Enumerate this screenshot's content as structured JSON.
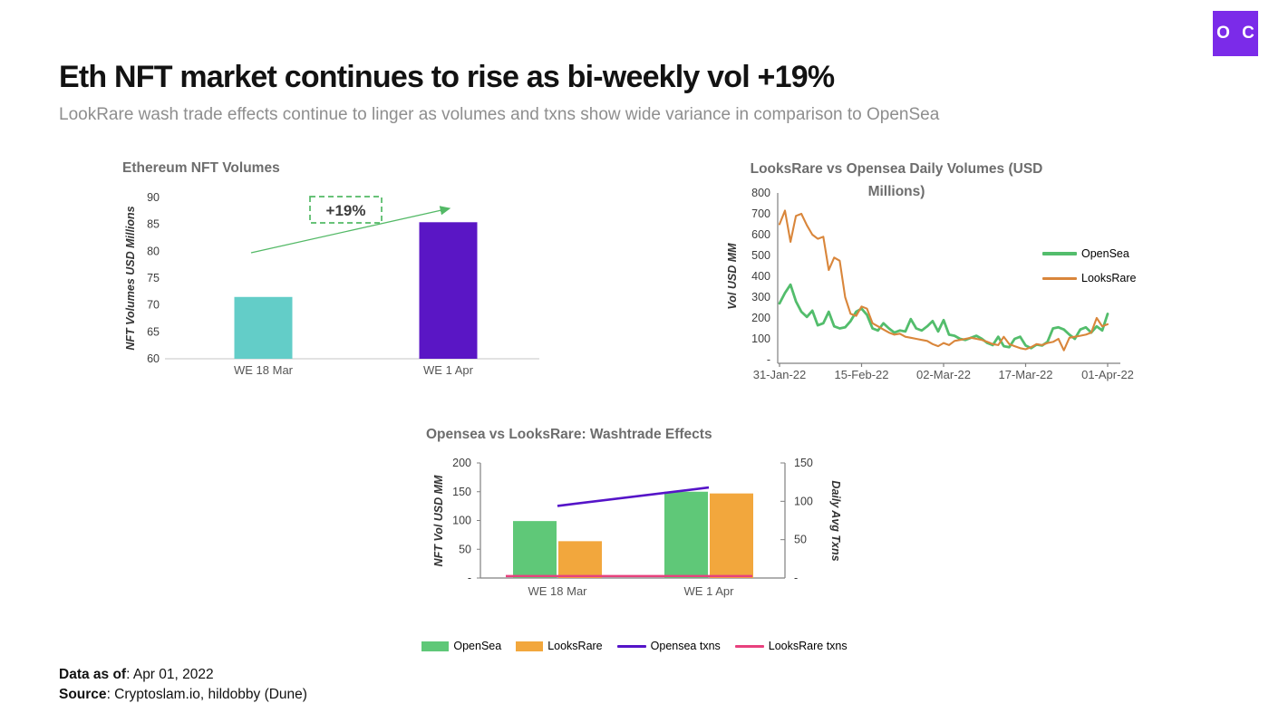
{
  "logo": {
    "text": "O C",
    "color": "#7B2BE9"
  },
  "header": {
    "title": "Eth NFT market continues to rise as bi-weekly vol +19%",
    "subtitle": "LookRare wash trade effects continue to linger as volumes and txns show wide variance in comparison to OpenSea"
  },
  "footer": {
    "line1_label": "Data as of",
    "line1_value": ": Apr 01, 2022",
    "line2_label": "Source",
    "line2_value": ": Cryptoslam.io, hildobby (Dune)"
  },
  "chart_data": [
    {
      "id": "eth-nft-volumes",
      "type": "bar",
      "title": "Ethereum NFT Volumes",
      "ylabel": "NFT Volumes USD Millions",
      "categories": [
        "WE 18 Mar",
        "WE 1 Apr"
      ],
      "values": [
        71.5,
        85.4
      ],
      "bar_colors": [
        "#63CDC8",
        "#5A16C5"
      ],
      "ylim": [
        60,
        90
      ],
      "yticks": [
        90,
        85,
        80,
        75,
        70,
        65,
        60
      ],
      "grid": "baseline-only",
      "annotation": {
        "label": "+19%",
        "color": "#53B966",
        "style": "dashed-box-with-arrow"
      }
    },
    {
      "id": "looksrare-vs-opensea-daily-volumes",
      "type": "line",
      "title": "LooksRare vs Opensea Daily Volumes (USD Millions)",
      "ylabel": "Vol USD MM",
      "ylim": [
        0,
        800
      ],
      "yticks": [
        800,
        700,
        600,
        500,
        400,
        300,
        200,
        100,
        0
      ],
      "zero_tick_label": "-",
      "xticks": [
        "31-Jan-22",
        "15-Feb-22",
        "02-Mar-22",
        "17-Mar-22",
        "01-Apr-22"
      ],
      "legend_position": "right",
      "series": [
        {
          "name": "OpenSea",
          "color": "#53BD6C",
          "values": [
            270,
            320,
            360,
            280,
            230,
            205,
            235,
            165,
            175,
            230,
            160,
            150,
            155,
            185,
            230,
            245,
            215,
            150,
            140,
            175,
            150,
            130,
            140,
            135,
            195,
            150,
            140,
            160,
            185,
            135,
            190,
            120,
            115,
            100,
            95,
            105,
            115,
            100,
            80,
            70,
            110,
            65,
            60,
            100,
            110,
            68,
            55,
            72,
            68,
            85,
            150,
            155,
            145,
            120,
            100,
            145,
            155,
            130,
            160,
            140,
            220
          ]
        },
        {
          "name": "LooksRare",
          "color": "#D9863B",
          "values": [
            650,
            715,
            565,
            690,
            700,
            645,
            600,
            580,
            590,
            430,
            490,
            475,
            300,
            220,
            210,
            255,
            245,
            175,
            160,
            145,
            130,
            120,
            125,
            110,
            105,
            100,
            95,
            90,
            75,
            65,
            80,
            70,
            90,
            95,
            100,
            105,
            100,
            95,
            85,
            75,
            70,
            110,
            75,
            65,
            55,
            50,
            60,
            75,
            70,
            80,
            85,
            100,
            45,
            105,
            110,
            115,
            120,
            130,
            200,
            160,
            170
          ]
        }
      ]
    },
    {
      "id": "washtrade-effects",
      "type": "combo",
      "title": "Opensea vs LooksRare: Washtrade Effects",
      "ylabel_left": "NFT Vol USD MM",
      "ylabel_right": "Daily Avg Txns",
      "ylim_left": [
        0,
        200
      ],
      "ylim_right": [
        0,
        150
      ],
      "yticks_left": [
        200,
        150,
        100,
        50,
        0
      ],
      "yticks_right": [
        150,
        100,
        50,
        0
      ],
      "zero_tick_label": "-",
      "categories": [
        "WE 18 Mar",
        "WE 1 Apr"
      ],
      "bar_series": [
        {
          "name": "OpenSea",
          "color": "#5FC878",
          "values": [
            99,
            150
          ]
        },
        {
          "name": "LooksRare",
          "color": "#F2A73D",
          "values": [
            64,
            147
          ]
        }
      ],
      "line_series": [
        {
          "name": "Opensea txns",
          "color": "#5514C8",
          "values": [
            94,
            118
          ],
          "axis": "right"
        },
        {
          "name": "LooksRare txns",
          "color": "#E8417E",
          "values": [
            2.5,
            2.5
          ],
          "axis": "right"
        }
      ],
      "legend_position": "bottom"
    }
  ]
}
